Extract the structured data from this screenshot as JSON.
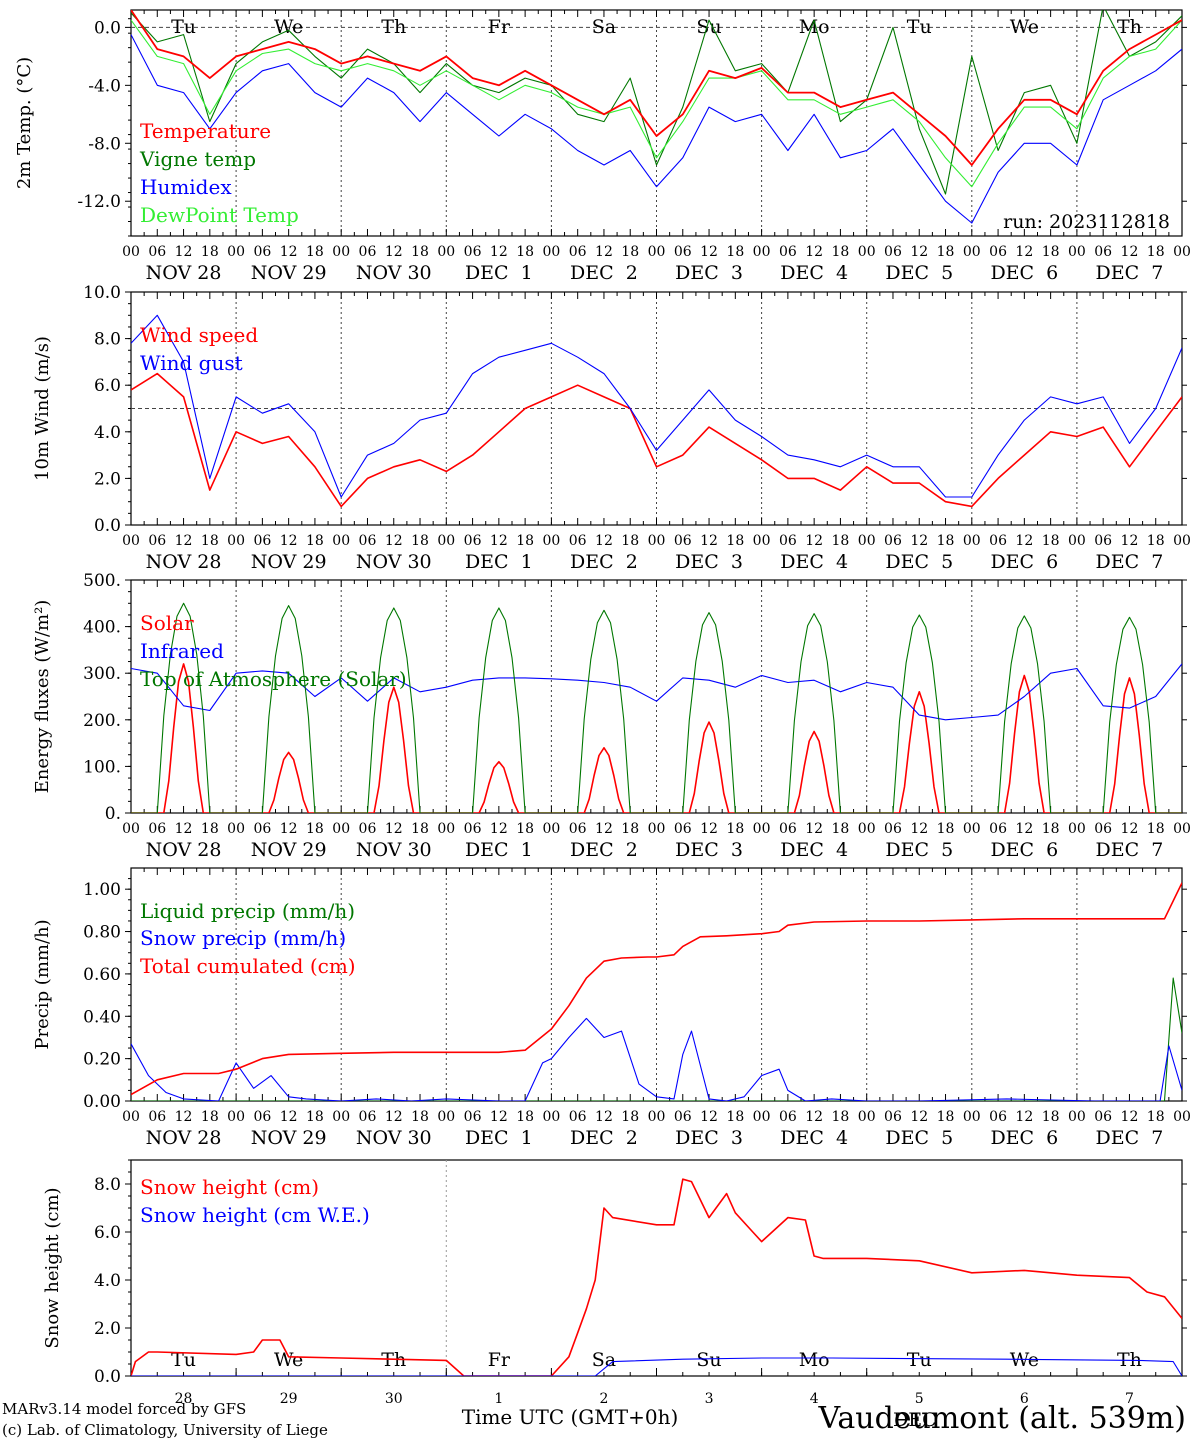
{
  "title": "Vaudeumont (alt. 539m)",
  "run_label": "run: 2023112818",
  "credits": [
    "MARv3.14 model forced by GFS",
    "(c) Lab. of Climatology, University of Liege"
  ],
  "x_axis_label": "Time UTC (GMT+0h)",
  "hour_ticks": [
    "00",
    "06",
    "12",
    "18"
  ],
  "final_tick": "00",
  "dates": [
    "NOV 28",
    "NOV 29",
    "NOV 30",
    "DEC  1",
    "DEC  2",
    "DEC  3",
    "DEC  4",
    "DEC  5",
    "DEC  6",
    "DEC  7"
  ],
  "weekdays": [
    "Tu",
    "We",
    "Th",
    "Fr",
    "Sa",
    "Su",
    "Mo",
    "Tu",
    "We",
    "Th"
  ],
  "weekend_indices": [
    4,
    5
  ],
  "bottom_day_numbers": [
    "28",
    "29",
    "30",
    "1",
    "2",
    "3",
    "4",
    "5",
    "6",
    "7"
  ],
  "bottom_month_label": "DEC",
  "colors": {
    "red": "#ff0000",
    "green": "#007700",
    "blue": "#0000ff",
    "lightgreen": "#33ee33",
    "title": "#3333ee"
  },
  "chart_data": [
    {
      "type": "line",
      "ylabel": "2m Temp. (°C)",
      "ylim": [
        -14.4,
        1.2
      ],
      "yticks": [
        "0.0",
        "-4.0",
        "-8.0",
        "-12.0"
      ],
      "yticks_values": [
        0,
        -4,
        -8,
        -12
      ],
      "reference_line": 0,
      "x_unit": "hours since NOV 28 00 UTC",
      "series": [
        {
          "name": "Temperature",
          "color": "red",
          "x": [
            0,
            6,
            12,
            18,
            24,
            30,
            36,
            42,
            48,
            54,
            60,
            66,
            72,
            78,
            84,
            90,
            96,
            102,
            108,
            114,
            120,
            126,
            132,
            138,
            144,
            150,
            156,
            162,
            168,
            174,
            180,
            186,
            192,
            198,
            204,
            210,
            216,
            222,
            228,
            234,
            240
          ],
          "y": [
            1.2,
            -1.5,
            -2.0,
            -3.5,
            -2.0,
            -1.5,
            -1.0,
            -1.5,
            -2.5,
            -2.0,
            -2.5,
            -3.0,
            -2.0,
            -3.5,
            -4.0,
            -3.0,
            -4.0,
            -5.0,
            -6.0,
            -5.0,
            -7.5,
            -6.0,
            -3.0,
            -3.5,
            -2.8,
            -4.5,
            -4.5,
            -5.5,
            -5.0,
            -4.5,
            -6.0,
            -7.5,
            -9.5,
            -7.0,
            -5.0,
            -5.0,
            -6.0,
            -3.0,
            -1.5,
            -0.5,
            0.5
          ]
        },
        {
          "name": "Vigne temp",
          "color": "green",
          "x": [
            0,
            6,
            12,
            18,
            24,
            30,
            36,
            42,
            48,
            54,
            60,
            66,
            72,
            78,
            84,
            90,
            96,
            102,
            108,
            114,
            120,
            126,
            132,
            138,
            144,
            150,
            156,
            162,
            168,
            174,
            180,
            186,
            192,
            198,
            204,
            210,
            216,
            222,
            228,
            234,
            240
          ],
          "y": [
            1.0,
            -1.0,
            -0.5,
            -6.5,
            -2.5,
            -1.0,
            -0.2,
            -2.0,
            -3.5,
            -1.5,
            -2.5,
            -4.5,
            -2.5,
            -4.0,
            -4.5,
            -3.5,
            -4.0,
            -6.0,
            -6.5,
            -3.5,
            -9.5,
            -5.5,
            0.5,
            -3.0,
            -2.5,
            -4.5,
            0.5,
            -6.5,
            -5.0,
            0.0,
            -7.0,
            -11.5,
            -2.0,
            -8.5,
            -4.5,
            -4.0,
            -8.0,
            1.5,
            -2.0,
            -1.0,
            0.8
          ]
        },
        {
          "name": "Humidex",
          "color": "blue",
          "x": [
            0,
            6,
            12,
            18,
            24,
            30,
            36,
            42,
            48,
            54,
            60,
            66,
            72,
            78,
            84,
            90,
            96,
            102,
            108,
            114,
            120,
            126,
            132,
            138,
            144,
            150,
            156,
            162,
            168,
            174,
            180,
            186,
            192,
            198,
            204,
            210,
            216,
            222,
            228,
            234,
            240
          ],
          "y": [
            -0.5,
            -4.0,
            -4.5,
            -7.0,
            -4.5,
            -3.0,
            -2.5,
            -4.5,
            -5.5,
            -3.5,
            -4.5,
            -6.5,
            -4.5,
            -6.0,
            -7.5,
            -6.0,
            -7.0,
            -8.5,
            -9.5,
            -8.5,
            -11.0,
            -9.0,
            -5.5,
            -6.5,
            -6.0,
            -8.5,
            -6.0,
            -9.0,
            -8.5,
            -7.0,
            -9.5,
            -12.0,
            -13.5,
            -10.0,
            -8.0,
            -8.0,
            -9.5,
            -5.0,
            -4.0,
            -3.0,
            -1.5
          ]
        },
        {
          "name": "DewPoint Temp",
          "color": "lightgreen",
          "x": [
            0,
            6,
            12,
            18,
            24,
            30,
            36,
            42,
            48,
            54,
            60,
            66,
            72,
            78,
            84,
            90,
            96,
            102,
            108,
            114,
            120,
            126,
            132,
            138,
            144,
            150,
            156,
            162,
            168,
            174,
            180,
            186,
            192,
            198,
            204,
            210,
            216,
            222,
            228,
            234,
            240
          ],
          "y": [
            0.5,
            -2.0,
            -2.5,
            -6.0,
            -3.0,
            -1.8,
            -1.5,
            -2.5,
            -3.0,
            -2.5,
            -3.0,
            -4.0,
            -3.0,
            -4.0,
            -5.0,
            -4.0,
            -4.5,
            -5.5,
            -6.0,
            -5.5,
            -9.0,
            -6.5,
            -3.5,
            -3.5,
            -3.0,
            -5.0,
            -5.0,
            -6.0,
            -5.5,
            -5.0,
            -6.5,
            -9.0,
            -11.0,
            -8.0,
            -5.5,
            -5.5,
            -7.0,
            -3.5,
            -2.0,
            -1.5,
            0.5
          ]
        }
      ]
    },
    {
      "type": "line",
      "ylabel": "10m Wind (m/s)",
      "ylim": [
        0,
        10
      ],
      "yticks": [
        "0.0",
        "2.0",
        "4.0",
        "6.0",
        "8.0",
        "10.0"
      ],
      "yticks_values": [
        0,
        2,
        4,
        6,
        8,
        10
      ],
      "reference_line": 5,
      "series": [
        {
          "name": "Wind speed",
          "color": "red",
          "x": [
            0,
            6,
            12,
            18,
            24,
            30,
            36,
            42,
            48,
            54,
            60,
            66,
            72,
            78,
            84,
            90,
            96,
            102,
            108,
            114,
            120,
            126,
            132,
            138,
            144,
            150,
            156,
            162,
            168,
            174,
            180,
            186,
            192,
            198,
            204,
            210,
            216,
            222,
            228,
            234,
            240
          ],
          "y": [
            5.8,
            6.5,
            5.5,
            1.5,
            4.0,
            3.5,
            3.8,
            2.5,
            0.8,
            2.0,
            2.5,
            2.8,
            2.3,
            3.0,
            4.0,
            5.0,
            5.5,
            6.0,
            5.5,
            5.0,
            2.5,
            3.0,
            4.2,
            3.5,
            2.8,
            2.0,
            2.0,
            1.5,
            2.5,
            1.8,
            1.8,
            1.0,
            0.8,
            2.0,
            3.0,
            4.0,
            3.8,
            4.2,
            2.5,
            4.0,
            5.5
          ]
        },
        {
          "name": "Wind gust",
          "color": "blue",
          "x": [
            0,
            6,
            12,
            18,
            24,
            30,
            36,
            42,
            48,
            54,
            60,
            66,
            72,
            78,
            84,
            90,
            96,
            102,
            108,
            114,
            120,
            126,
            132,
            138,
            144,
            150,
            156,
            162,
            168,
            174,
            180,
            186,
            192,
            198,
            204,
            210,
            216,
            222,
            228,
            234,
            240
          ],
          "y": [
            7.8,
            9.0,
            7.0,
            2.0,
            5.5,
            4.8,
            5.2,
            4.0,
            1.2,
            3.0,
            3.5,
            4.5,
            4.8,
            6.5,
            7.2,
            7.5,
            7.8,
            7.2,
            6.5,
            5.0,
            3.2,
            4.5,
            5.8,
            4.5,
            3.8,
            3.0,
            2.8,
            2.5,
            3.0,
            2.5,
            2.5,
            1.2,
            1.2,
            3.0,
            4.5,
            5.5,
            5.2,
            5.5,
            3.5,
            5.0,
            7.6
          ]
        }
      ]
    },
    {
      "type": "line",
      "ylabel": "Energy fluxes (W/m²)",
      "ylim": [
        0,
        500
      ],
      "yticks": [
        "0.",
        "100.",
        "200.",
        "300.",
        "400.",
        "500."
      ],
      "yticks_values": [
        0,
        100,
        200,
        300,
        400,
        500
      ],
      "series": [
        {
          "name": "Solar",
          "color": "red",
          "peaks_x": [
            12,
            36,
            60,
            84,
            108,
            132,
            156,
            180,
            204,
            228
          ],
          "peaks_y": [
            320,
            130,
            270,
            110,
            140,
            195,
            175,
            260,
            295,
            290
          ]
        },
        {
          "name": "Infrared",
          "color": "blue",
          "x": [
            0,
            6,
            12,
            18,
            24,
            30,
            36,
            42,
            48,
            54,
            60,
            66,
            72,
            78,
            84,
            90,
            96,
            102,
            108,
            114,
            120,
            126,
            132,
            138,
            144,
            150,
            156,
            162,
            168,
            174,
            180,
            186,
            192,
            198,
            204,
            210,
            216,
            222,
            228,
            234,
            240
          ],
          "y": [
            310,
            300,
            230,
            220,
            300,
            305,
            300,
            250,
            290,
            240,
            290,
            260,
            270,
            285,
            290,
            290,
            288,
            285,
            280,
            270,
            240,
            290,
            285,
            270,
            295,
            280,
            285,
            260,
            280,
            270,
            210,
            200,
            205,
            210,
            250,
            300,
            310,
            230,
            225,
            250,
            320
          ]
        },
        {
          "name": "Top of Atmosphere (Solar)",
          "color": "green",
          "peaks_x": [
            12,
            36,
            60,
            84,
            108,
            132,
            156,
            180,
            204,
            228
          ],
          "peaks_y": [
            450,
            445,
            440,
            440,
            435,
            430,
            428,
            425,
            423,
            420
          ]
        }
      ]
    },
    {
      "type": "line",
      "ylabel": "Precip (mm/h)",
      "ylim": [
        0,
        1.1
      ],
      "yticks": [
        "0.00",
        "0.20",
        "0.40",
        "0.60",
        "0.80",
        "1.00"
      ],
      "yticks_values": [
        0,
        0.2,
        0.4,
        0.6,
        0.8,
        1.0
      ],
      "series": [
        {
          "name": "Liquid precip (mm/h)",
          "color": "green",
          "x": [
            0,
            236,
            238,
            240
          ],
          "y": [
            0,
            0,
            0.58,
            0.32
          ]
        },
        {
          "name": "Snow precip (mm/h)",
          "color": "blue",
          "x": [
            0,
            4,
            8,
            12,
            20,
            24,
            28,
            32,
            36,
            40,
            48,
            56,
            64,
            72,
            84,
            90,
            94,
            96,
            100,
            104,
            108,
            112,
            116,
            120,
            124,
            126,
            128,
            132,
            136,
            140,
            144,
            148,
            150,
            154,
            160,
            168,
            180,
            200,
            220,
            235,
            237,
            240
          ],
          "y": [
            0.27,
            0.12,
            0.04,
            0.01,
            0.0,
            0.18,
            0.06,
            0.12,
            0.02,
            0.01,
            0.0,
            0.01,
            0.0,
            0.01,
            0.0,
            0.0,
            0.18,
            0.2,
            0.3,
            0.39,
            0.3,
            0.33,
            0.08,
            0.02,
            0.01,
            0.22,
            0.33,
            0.01,
            0.0,
            0.02,
            0.12,
            0.15,
            0.05,
            0.0,
            0.01,
            0.0,
            0.0,
            0.01,
            0.0,
            0.0,
            0.26,
            0.05
          ]
        },
        {
          "name": "Total cumulated (cm)",
          "color": "red",
          "x": [
            0,
            6,
            12,
            20,
            24,
            30,
            36,
            48,
            60,
            72,
            84,
            90,
            96,
            100,
            104,
            108,
            112,
            118,
            120,
            124,
            126,
            130,
            136,
            144,
            148,
            150,
            156,
            168,
            180,
            192,
            204,
            216,
            228,
            236,
            240
          ],
          "y": [
            0.03,
            0.1,
            0.13,
            0.13,
            0.15,
            0.2,
            0.22,
            0.225,
            0.23,
            0.23,
            0.23,
            0.24,
            0.34,
            0.45,
            0.58,
            0.66,
            0.675,
            0.68,
            0.68,
            0.69,
            0.73,
            0.775,
            0.78,
            0.79,
            0.8,
            0.83,
            0.845,
            0.85,
            0.85,
            0.855,
            0.86,
            0.86,
            0.86,
            0.86,
            1.03
          ]
        }
      ]
    },
    {
      "type": "line",
      "ylabel": "Snow height (cm)",
      "ylim": [
        0,
        9
      ],
      "yticks": [
        "0.0",
        "2.0",
        "4.0",
        "6.0",
        "8.0"
      ],
      "yticks_values": [
        0,
        2,
        4,
        6,
        8
      ],
      "series": [
        {
          "name": "Snow height (cm)",
          "color": "red",
          "x": [
            0,
            1,
            4,
            6,
            24,
            28,
            30,
            34,
            36,
            48,
            60,
            72,
            76,
            78,
            90,
            96,
            100,
            102,
            104,
            106,
            108,
            110,
            120,
            124,
            126,
            128,
            132,
            136,
            138,
            142,
            144,
            150,
            154,
            156,
            158,
            168,
            180,
            192,
            204,
            216,
            228,
            232,
            236,
            240
          ],
          "y": [
            0,
            0.6,
            1.0,
            1.0,
            0.9,
            1.0,
            1.5,
            1.5,
            0.8,
            0.75,
            0.7,
            0.65,
            0.0,
            0.0,
            0.0,
            0.0,
            0.8,
            1.8,
            2.8,
            4.0,
            7.0,
            6.6,
            6.3,
            6.3,
            8.2,
            8.1,
            6.6,
            7.6,
            6.8,
            6.0,
            5.6,
            6.6,
            6.5,
            5.0,
            4.9,
            4.9,
            4.8,
            4.3,
            4.4,
            4.2,
            4.1,
            3.5,
            3.3,
            2.4
          ]
        },
        {
          "name": "Snow height (cm W.E.)",
          "color": "blue",
          "x": [
            0,
            96,
            106,
            110,
            126,
            144,
            160,
            200,
            230,
            238,
            240
          ],
          "y": [
            0,
            0,
            0,
            0.6,
            0.7,
            0.75,
            0.75,
            0.7,
            0.65,
            0.6,
            0.0
          ]
        }
      ]
    }
  ]
}
